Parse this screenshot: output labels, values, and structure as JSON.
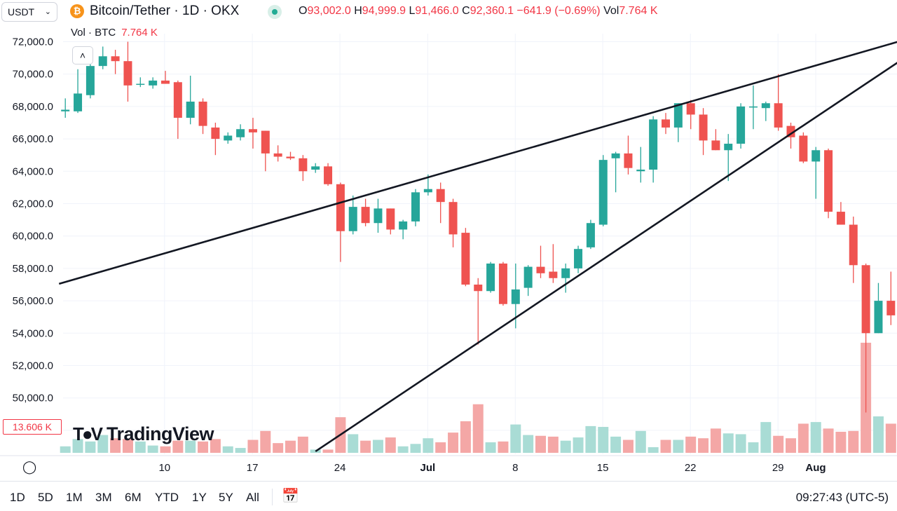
{
  "header": {
    "currency_select": "USDT",
    "title": "Bitcoin/Tether · 1D · OKX",
    "open_label": "O",
    "open": "93,002.0",
    "high_label": "H",
    "high": "94,999.9",
    "low_label": "L",
    "low": "91,466.0",
    "close_label": "C",
    "close": "92,360.1",
    "change": "−641.9 (−0.69%)",
    "vol_label": "Vol",
    "vol": "7.764 K"
  },
  "volume_legend": {
    "label": "Vol · BTC",
    "value": "7.764 K"
  },
  "volume_badge": "13.606 K",
  "brand": "TradingView",
  "toolbar": {
    "timeframes": [
      "1D",
      "5D",
      "1M",
      "3M",
      "6M",
      "YTD",
      "1Y",
      "5Y",
      "All"
    ],
    "clock": "09:27:43 (UTC-5)"
  },
  "colors": {
    "up": "#26a69a",
    "down": "#ef5350",
    "up_vol": "#a9dcd5",
    "down_vol": "#f4a7a6",
    "grid": "#f0f3fa",
    "trendline": "#131722"
  },
  "chart_data": {
    "type": "candlestick",
    "y_ticks": [
      "72,000.0",
      "70,000.0",
      "68,000.0",
      "66,000.0",
      "64,000.0",
      "62,000.0",
      "60,000.0",
      "58,000.0",
      "56,000.0",
      "54,000.0",
      "52,000.0",
      "50,000.0"
    ],
    "x_ticks": [
      "10",
      "17",
      "24",
      "Jul",
      "8",
      "15",
      "22",
      "29",
      "Aug"
    ],
    "ylim": [
      47000,
      73000
    ],
    "candles": [
      {
        "o": 67700,
        "h": 68500,
        "l": 67300,
        "c": 67800
      },
      {
        "o": 67700,
        "h": 70300,
        "l": 67600,
        "c": 68800
      },
      {
        "o": 68700,
        "h": 71400,
        "l": 68500,
        "c": 70500
      },
      {
        "o": 70500,
        "h": 71700,
        "l": 70300,
        "c": 71100
      },
      {
        "o": 71100,
        "h": 71500,
        "l": 70000,
        "c": 70800
      },
      {
        "o": 70800,
        "h": 72000,
        "l": 68300,
        "c": 69300
      },
      {
        "o": 69400,
        "h": 69800,
        "l": 69200,
        "c": 69400
      },
      {
        "o": 69300,
        "h": 69800,
        "l": 69100,
        "c": 69600
      },
      {
        "o": 69600,
        "h": 70200,
        "l": 69400,
        "c": 69400
      },
      {
        "o": 69500,
        "h": 69600,
        "l": 66000,
        "c": 67300
      },
      {
        "o": 67300,
        "h": 69900,
        "l": 66900,
        "c": 68300
      },
      {
        "o": 68300,
        "h": 68500,
        "l": 66300,
        "c": 66800
      },
      {
        "o": 66700,
        "h": 67000,
        "l": 65000,
        "c": 66000
      },
      {
        "o": 65900,
        "h": 66400,
        "l": 65700,
        "c": 66200
      },
      {
        "o": 66100,
        "h": 66900,
        "l": 65900,
        "c": 66600
      },
      {
        "o": 66600,
        "h": 67300,
        "l": 65400,
        "c": 66400
      },
      {
        "o": 66500,
        "h": 66500,
        "l": 64000,
        "c": 65100
      },
      {
        "o": 65100,
        "h": 65600,
        "l": 64600,
        "c": 64900
      },
      {
        "o": 64900,
        "h": 65200,
        "l": 64700,
        "c": 64800
      },
      {
        "o": 64800,
        "h": 65000,
        "l": 63400,
        "c": 64000
      },
      {
        "o": 64100,
        "h": 64500,
        "l": 63900,
        "c": 64300
      },
      {
        "o": 64300,
        "h": 64500,
        "l": 63100,
        "c": 63200
      },
      {
        "o": 63200,
        "h": 63300,
        "l": 58400,
        "c": 60300
      },
      {
        "o": 60300,
        "h": 62500,
        "l": 60100,
        "c": 61800
      },
      {
        "o": 61800,
        "h": 62300,
        "l": 60600,
        "c": 60800
      },
      {
        "o": 60800,
        "h": 62300,
        "l": 60200,
        "c": 61700
      },
      {
        "o": 61700,
        "h": 61700,
        "l": 60100,
        "c": 60400
      },
      {
        "o": 60400,
        "h": 61000,
        "l": 59800,
        "c": 60900
      },
      {
        "o": 60900,
        "h": 62900,
        "l": 60600,
        "c": 62700
      },
      {
        "o": 62700,
        "h": 63800,
        "l": 62500,
        "c": 62900
      },
      {
        "o": 62900,
        "h": 63300,
        "l": 60800,
        "c": 62100
      },
      {
        "o": 62100,
        "h": 62300,
        "l": 59300,
        "c": 60100
      },
      {
        "o": 60200,
        "h": 60500,
        "l": 56900,
        "c": 57000
      },
      {
        "o": 57000,
        "h": 57400,
        "l": 53300,
        "c": 56600
      },
      {
        "o": 56600,
        "h": 58400,
        "l": 56500,
        "c": 58300
      },
      {
        "o": 58300,
        "h": 58400,
        "l": 55700,
        "c": 55800
      },
      {
        "o": 55800,
        "h": 58300,
        "l": 54300,
        "c": 56700
      },
      {
        "o": 56800,
        "h": 58200,
        "l": 56300,
        "c": 58100
      },
      {
        "o": 58100,
        "h": 59400,
        "l": 57400,
        "c": 57700
      },
      {
        "o": 57800,
        "h": 59500,
        "l": 57100,
        "c": 57400
      },
      {
        "o": 57400,
        "h": 58300,
        "l": 56500,
        "c": 58000
      },
      {
        "o": 58000,
        "h": 59400,
        "l": 57700,
        "c": 59200
      },
      {
        "o": 59300,
        "h": 61000,
        "l": 59200,
        "c": 60800
      },
      {
        "o": 60700,
        "h": 65000,
        "l": 60600,
        "c": 64700
      },
      {
        "o": 64800,
        "h": 65200,
        "l": 62700,
        "c": 65100
      },
      {
        "o": 65100,
        "h": 66200,
        "l": 63800,
        "c": 64200
      },
      {
        "o": 64000,
        "h": 65500,
        "l": 63300,
        "c": 64100
      },
      {
        "o": 64100,
        "h": 67400,
        "l": 63300,
        "c": 67200
      },
      {
        "o": 67200,
        "h": 67600,
        "l": 66300,
        "c": 66700
      },
      {
        "o": 66700,
        "h": 68200,
        "l": 65800,
        "c": 68200
      },
      {
        "o": 68200,
        "h": 68400,
        "l": 66600,
        "c": 67500
      },
      {
        "o": 67500,
        "h": 67900,
        "l": 65000,
        "c": 65900
      },
      {
        "o": 65900,
        "h": 66600,
        "l": 65300,
        "c": 65300
      },
      {
        "o": 65300,
        "h": 66300,
        "l": 63400,
        "c": 65700
      },
      {
        "o": 65700,
        "h": 68200,
        "l": 65400,
        "c": 68000
      },
      {
        "o": 68000,
        "h": 69300,
        "l": 66600,
        "c": 68000
      },
      {
        "o": 67900,
        "h": 68300,
        "l": 67100,
        "c": 68200
      },
      {
        "o": 68200,
        "h": 70000,
        "l": 66500,
        "c": 66700
      },
      {
        "o": 66800,
        "h": 67000,
        "l": 65400,
        "c": 66100
      },
      {
        "o": 66200,
        "h": 66400,
        "l": 64500,
        "c": 64600
      },
      {
        "o": 64600,
        "h": 65500,
        "l": 62300,
        "c": 65300
      },
      {
        "o": 65300,
        "h": 65400,
        "l": 61100,
        "c": 61500
      },
      {
        "o": 61500,
        "h": 62100,
        "l": 60700,
        "c": 60700
      },
      {
        "o": 60700,
        "h": 61200,
        "l": 57100,
        "c": 58200
      },
      {
        "o": 58200,
        "h": 58300,
        "l": 49100,
        "c": 54000
      },
      {
        "o": 54000,
        "h": 57100,
        "l": 54000,
        "c": 56000
      },
      {
        "o": 56000,
        "h": 57800,
        "l": 54500,
        "c": 55100
      }
    ],
    "volume": [
      0.8,
      1.7,
      1.4,
      2.2,
      1.8,
      1.7,
      1.4,
      0.9,
      0.8,
      1.5,
      1.5,
      1.4,
      1.7,
      0.8,
      0.6,
      1.6,
      2.7,
      1.2,
      1.5,
      2.0,
      0.4,
      0.4,
      4.4,
      2.3,
      1.5,
      1.6,
      1.9,
      0.8,
      1.1,
      1.8,
      1.3,
      2.5,
      3.9,
      6.0,
      1.3,
      1.4,
      3.5,
      2.2,
      2.1,
      2.0,
      1.5,
      1.9,
      3.3,
      3.2,
      2.0,
      1.6,
      2.7,
      0.7,
      1.6,
      1.6,
      2.0,
      1.8,
      3.0,
      2.4,
      2.3,
      1.3,
      3.8,
      2.1,
      1.8,
      3.6,
      3.8,
      3.0,
      2.6,
      2.7,
      13.6,
      4.5,
      3.6
    ],
    "volume_ymax": 14.2,
    "trendlines": [
      {
        "from": {
          "i": -0.5,
          "p": 57050
        },
        "to": {
          "i": 66.8,
          "p": 72050
        }
      },
      {
        "from": {
          "i": 20.0,
          "p": 46700
        },
        "to": {
          "i": 66.8,
          "p": 70850
        }
      }
    ]
  }
}
